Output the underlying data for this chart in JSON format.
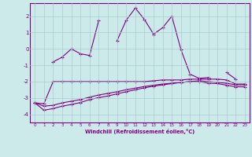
{
  "x": [
    0,
    1,
    2,
    3,
    4,
    5,
    6,
    7,
    8,
    9,
    10,
    11,
    12,
    13,
    14,
    15,
    16,
    17,
    18,
    19,
    20,
    21,
    22,
    23
  ],
  "line1": [
    null,
    null,
    -0.8,
    -0.5,
    0.0,
    -0.3,
    -0.4,
    1.75,
    null,
    0.5,
    1.75,
    2.5,
    1.8,
    0.9,
    1.3,
    2.0,
    -0.05,
    -1.55,
    -1.8,
    -1.75,
    null,
    -1.45,
    -1.85,
    null
  ],
  "line2": [
    -3.3,
    -3.35,
    -2.0,
    -2.0,
    -2.0,
    -2.0,
    -2.0,
    -2.0,
    -2.0,
    -2.0,
    -2.0,
    -2.0,
    -2.0,
    -1.95,
    -1.9,
    -1.9,
    -1.9,
    -1.85,
    -1.85,
    -1.85,
    -1.85,
    -1.9,
    -2.15,
    -2.15
  ],
  "line3": [
    -3.3,
    -3.5,
    -3.45,
    -3.3,
    -3.2,
    -3.1,
    -2.95,
    -2.82,
    -2.72,
    -2.62,
    -2.5,
    -2.4,
    -2.3,
    -2.22,
    -2.15,
    -2.1,
    -2.05,
    -2.0,
    -1.95,
    -2.0,
    -2.05,
    -2.1,
    -2.2,
    -2.2
  ],
  "line4": [
    -3.3,
    -3.75,
    -3.65,
    -3.5,
    -3.4,
    -3.28,
    -3.1,
    -2.98,
    -2.88,
    -2.75,
    -2.62,
    -2.5,
    -2.38,
    -2.28,
    -2.2,
    -2.12,
    -2.05,
    -2.0,
    -2.0,
    -2.1,
    -2.12,
    -2.22,
    -2.32,
    -2.32
  ],
  "color": "#800080",
  "bg_color": "#cceaea",
  "grid_color": "#aacccc",
  "xlabel": "Windchill (Refroidissement éolien,°C)",
  "ylim": [
    -4.5,
    2.8
  ],
  "xlim": [
    -0.5,
    23.5
  ],
  "yticks": [
    -4,
    -3,
    -2,
    -1,
    0,
    1,
    2
  ],
  "xticks": [
    0,
    1,
    2,
    3,
    4,
    5,
    6,
    7,
    8,
    9,
    10,
    11,
    12,
    13,
    14,
    15,
    16,
    17,
    18,
    19,
    20,
    21,
    22,
    23
  ]
}
